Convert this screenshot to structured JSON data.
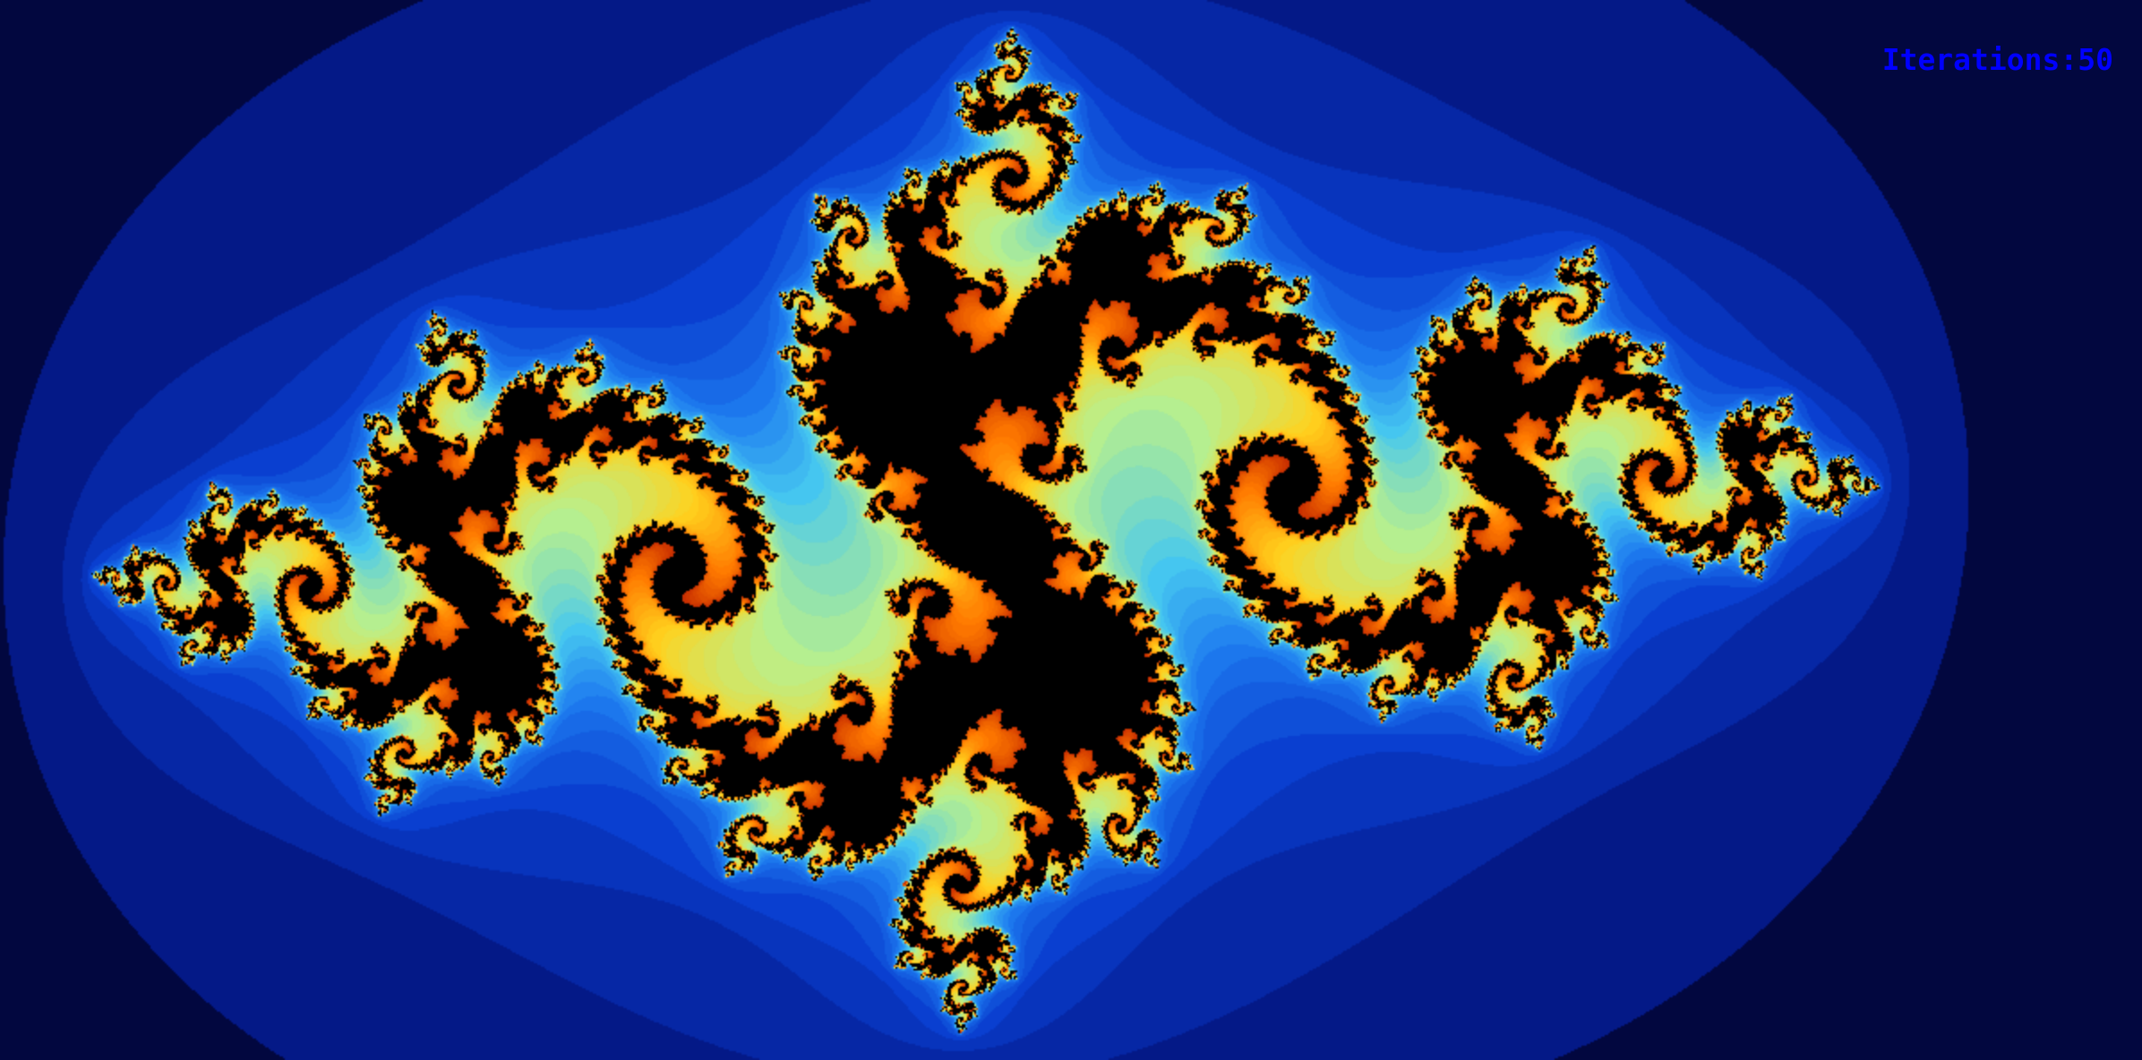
{
  "hud": {
    "iterations_label": "Iterations:",
    "iterations_value": "50",
    "text_color": "#0000ff"
  },
  "fractal": {
    "type": "julia",
    "max_iterations": 50,
    "background_color": "#000000",
    "palette": [
      "#02073f",
      "#041a8c",
      "#0a3fd0",
      "#1e7cf0",
      "#46c8f0",
      "#b9f08c",
      "#ffd21e",
      "#ff7a00",
      "#c42800",
      "#000000"
    ]
  }
}
